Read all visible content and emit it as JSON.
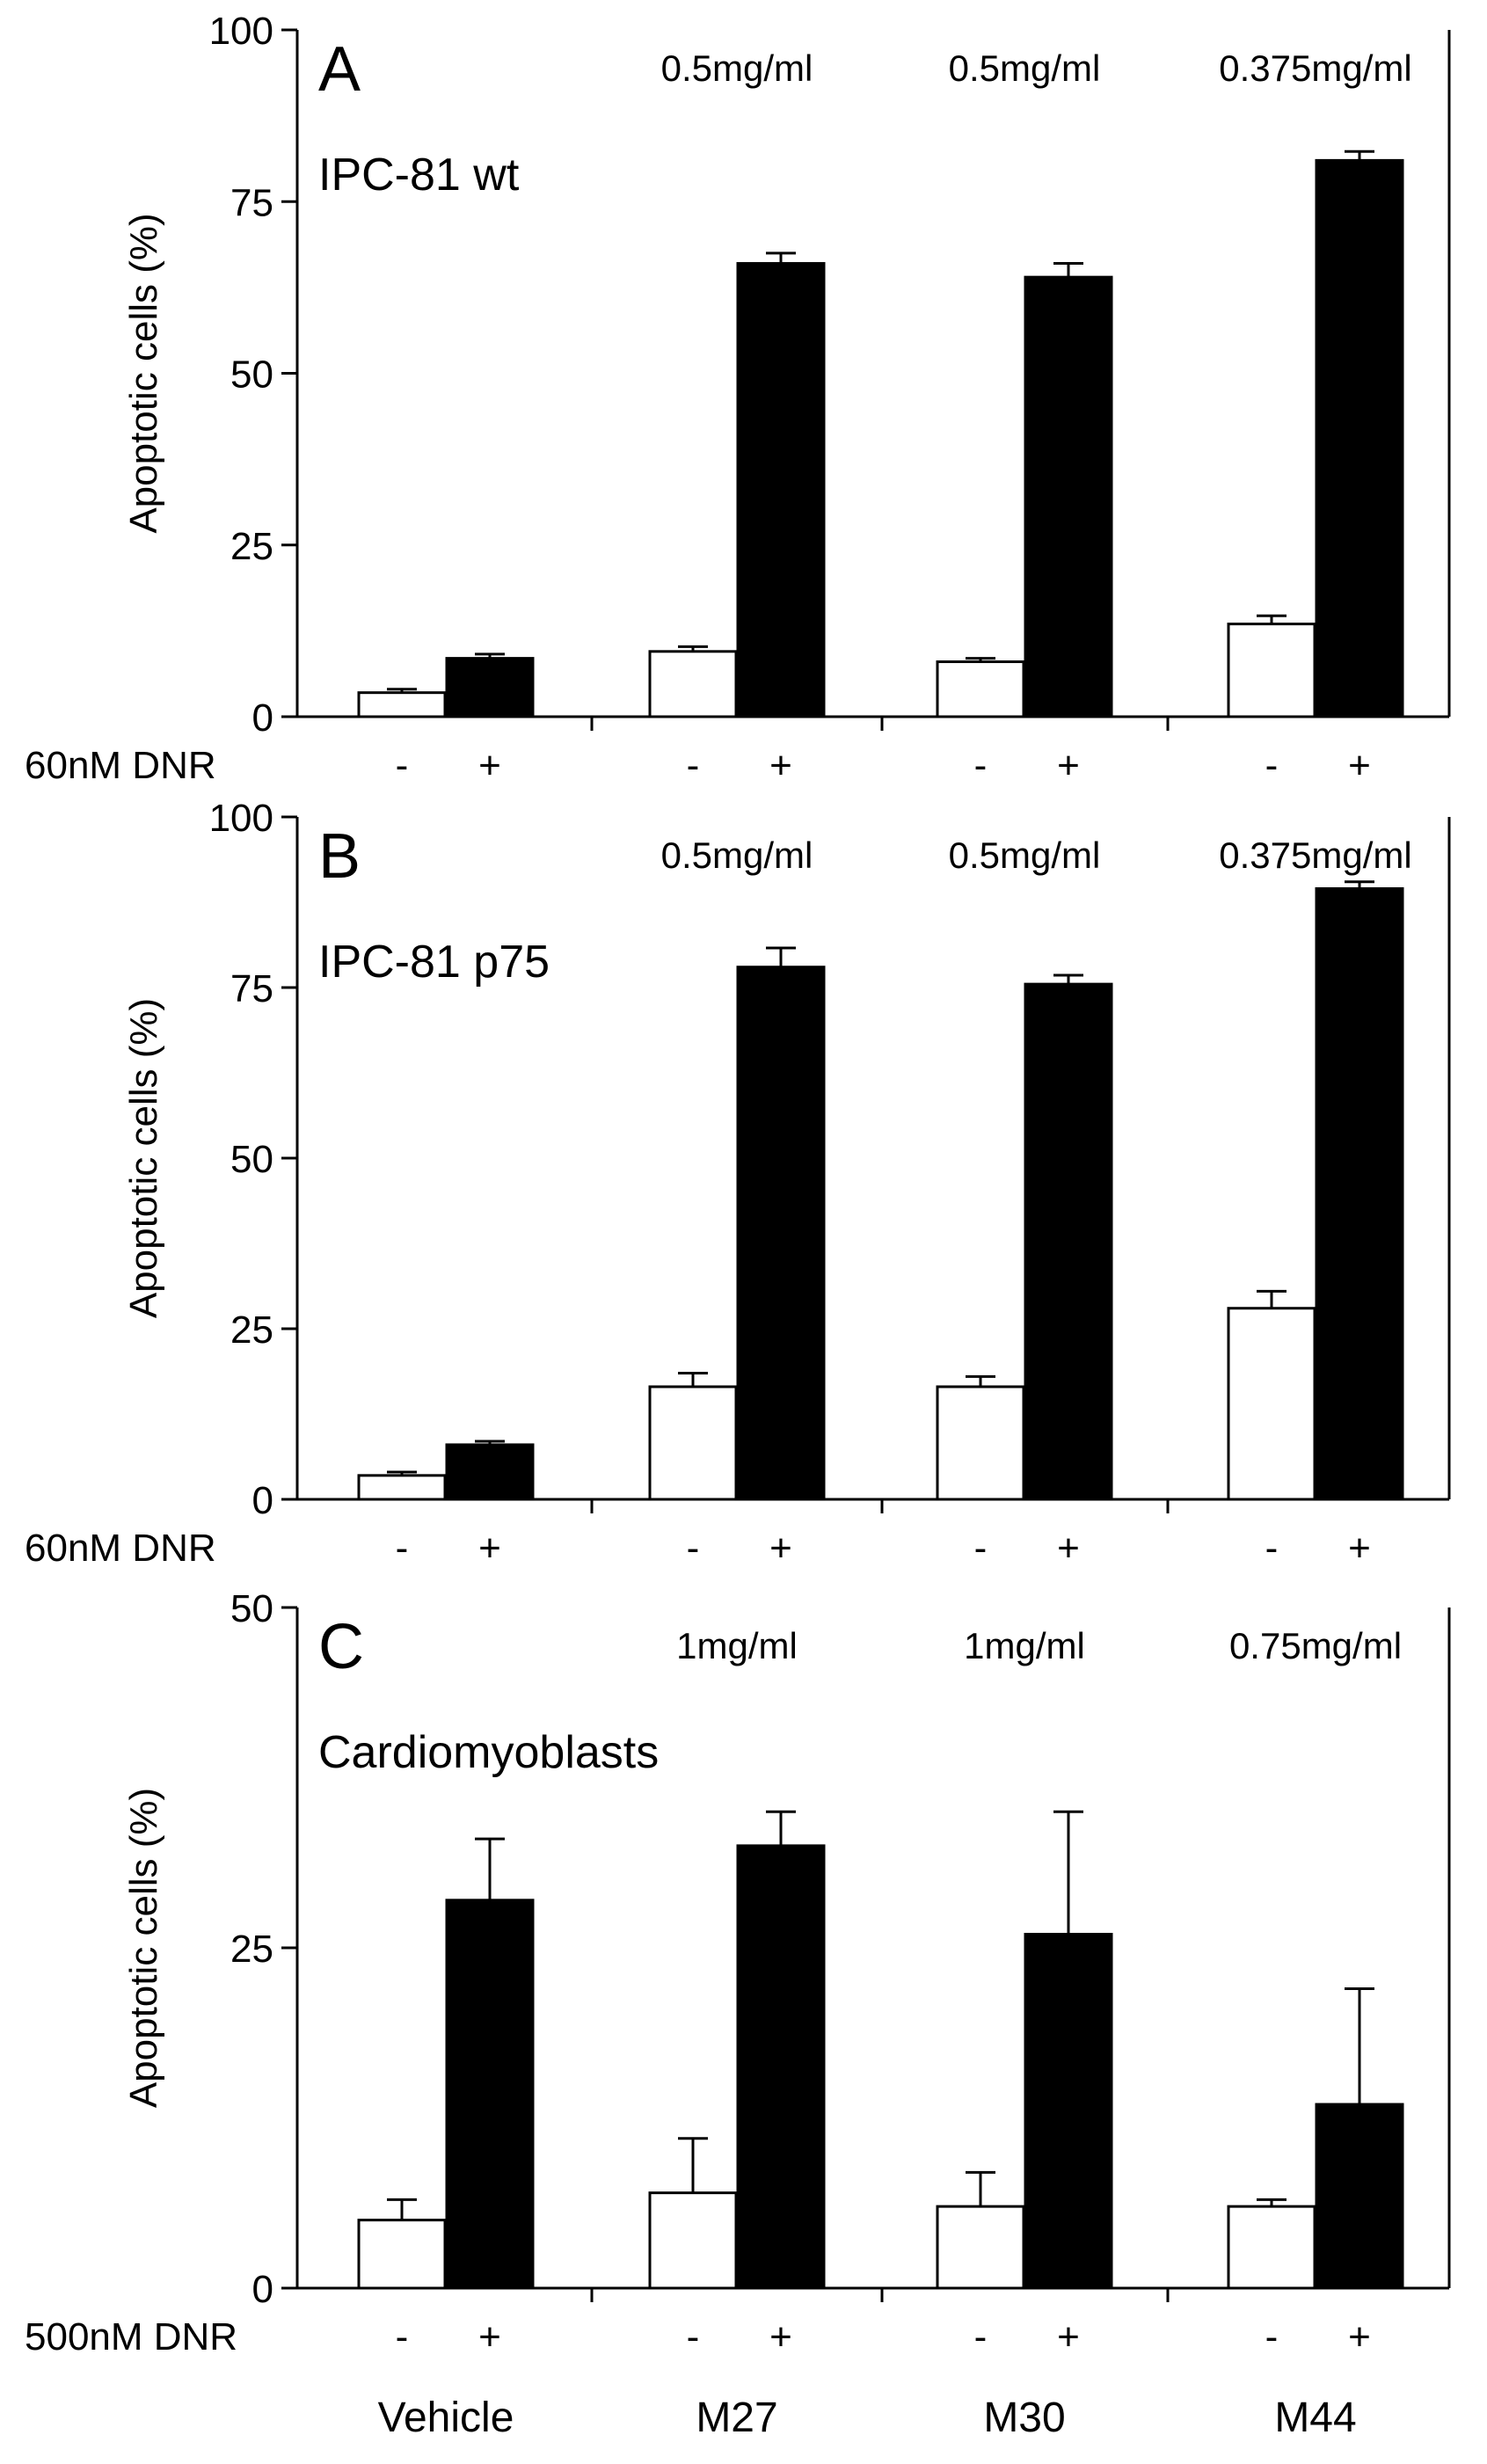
{
  "chart_data": [
    {
      "type": "bar",
      "panel_label": "A",
      "cell_line": "IPC-81 wt",
      "ylabel": "Apoptotic cells (%)",
      "ylim": [
        0,
        100
      ],
      "yticks": [
        "0",
        "25",
        "50",
        "75",
        "100"
      ],
      "treatment_label": "60nM DNR",
      "groups": [
        "Vehicle",
        "M27",
        "M30",
        "M44"
      ],
      "concentrations": [
        "",
        "0.5mg/ml",
        "0.5mg/ml",
        "0.375mg/ml"
      ],
      "series": [
        {
          "name": "-",
          "color": "#ffffff",
          "values": [
            3.5,
            9.5,
            8.0,
            13.5
          ],
          "errors": [
            0.5,
            0.7,
            0.5,
            1.2
          ]
        },
        {
          "name": "+",
          "color": "#000000",
          "values": [
            8.5,
            66.0,
            64.0,
            81.0
          ],
          "errors": [
            0.6,
            1.5,
            2.0,
            1.3
          ]
        }
      ]
    },
    {
      "type": "bar",
      "panel_label": "B",
      "cell_line": "IPC-81 p75",
      "ylabel": "Apoptotic cells (%)",
      "ylim": [
        0,
        100
      ],
      "yticks": [
        "0",
        "25",
        "50",
        "75",
        "100"
      ],
      "treatment_label": "60nM DNR",
      "groups": [
        "Vehicle",
        "M27",
        "M30",
        "M44"
      ],
      "concentrations": [
        "",
        "0.5mg/ml",
        "0.5mg/ml",
        "0.375mg/ml"
      ],
      "series": [
        {
          "name": "-",
          "color": "#ffffff",
          "values": [
            3.5,
            16.5,
            16.5,
            28.0
          ],
          "errors": [
            0.5,
            2.0,
            1.5,
            2.5
          ]
        },
        {
          "name": "+",
          "color": "#000000",
          "values": [
            8.0,
            78.0,
            75.5,
            89.5
          ],
          "errors": [
            0.5,
            2.8,
            1.3,
            1.0
          ]
        }
      ]
    },
    {
      "type": "bar",
      "panel_label": "C",
      "cell_line": "Cardiomyoblasts",
      "ylabel": "Apoptotic cells (%)",
      "ylim": [
        0,
        50
      ],
      "yticks": [
        "0",
        "25",
        "50"
      ],
      "treatment_label": "500nM DNR",
      "groups": [
        "Vehicle",
        "M27",
        "M30",
        "M44"
      ],
      "concentrations": [
        "",
        "1mg/ml",
        "1mg/ml",
        "0.75mg/ml"
      ],
      "series": [
        {
          "name": "-",
          "color": "#ffffff",
          "values": [
            5.0,
            7.0,
            6.0,
            6.0
          ],
          "errors": [
            1.5,
            4.0,
            2.5,
            0.5
          ]
        },
        {
          "name": "+",
          "color": "#000000",
          "values": [
            28.5,
            32.5,
            26.0,
            13.5
          ],
          "errors": [
            4.5,
            2.5,
            9.0,
            8.5
          ]
        }
      ],
      "xlabels": [
        "Vehicle",
        "M27",
        "M30",
        "M44"
      ]
    }
  ]
}
